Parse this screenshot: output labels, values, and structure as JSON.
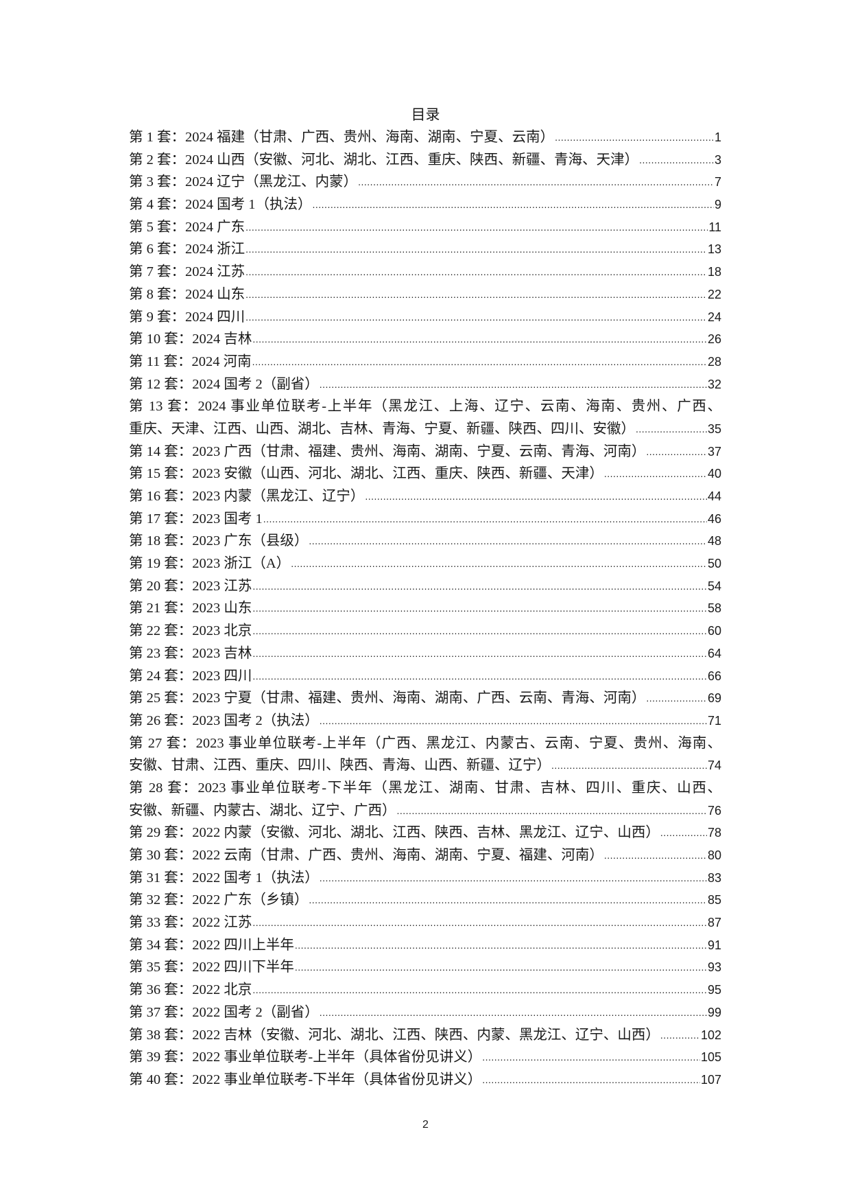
{
  "title": "目录",
  "page_number": "2",
  "entries": [
    {
      "lines": [
        "第 1 套：2024 福建（甘肃、广西、贵州、海南、湖南、宁夏、云南）"
      ],
      "page": "1"
    },
    {
      "lines": [
        "第 2 套：2024 山西（安徽、河北、湖北、江西、重庆、陕西、新疆、青海、天津）"
      ],
      "page": "3"
    },
    {
      "lines": [
        "第 3 套：2024 辽宁（黑龙江、内蒙）"
      ],
      "page": "7"
    },
    {
      "lines": [
        "第 4 套：2024 国考 1（执法）"
      ],
      "page": "9"
    },
    {
      "lines": [
        "第 5 套：2024 广东"
      ],
      "page": "11"
    },
    {
      "lines": [
        "第 6 套：2024 浙江"
      ],
      "page": "13"
    },
    {
      "lines": [
        "第 7 套：2024 江苏"
      ],
      "page": "18"
    },
    {
      "lines": [
        "第 8 套：2024 山东"
      ],
      "page": "22"
    },
    {
      "lines": [
        "第 9 套：2024 四川"
      ],
      "page": "24"
    },
    {
      "lines": [
        "第 10 套：2024 吉林"
      ],
      "page": "26"
    },
    {
      "lines": [
        "第 11 套：2024 河南"
      ],
      "page": "28"
    },
    {
      "lines": [
        "第 12 套：2024 国考 2（副省）"
      ],
      "page": "32"
    },
    {
      "lines": [
        "第 13 套：2024 事业单位联考-上半年（黑龙江、上海、辽宁、云南、海南、贵州、广西、",
        "重庆、天津、江西、山西、湖北、吉林、青海、宁夏、新疆、陕西、四川、安徽）"
      ],
      "page": "35"
    },
    {
      "lines": [
        "第 14 套：2023 广西（甘肃、福建、贵州、海南、湖南、宁夏、云南、青海、河南）"
      ],
      "page": "37"
    },
    {
      "lines": [
        "第 15 套：2023 安徽（山西、河北、湖北、江西、重庆、陕西、新疆、天津）"
      ],
      "page": "40"
    },
    {
      "lines": [
        "第 16 套：2023 内蒙（黑龙江、辽宁）"
      ],
      "page": "44"
    },
    {
      "lines": [
        "第 17 套：2023 国考 1"
      ],
      "page": "46"
    },
    {
      "lines": [
        "第 18 套：2023 广东（县级）"
      ],
      "page": "48"
    },
    {
      "lines": [
        "第 19 套：2023 浙江（A）"
      ],
      "page": "50"
    },
    {
      "lines": [
        "第 20 套：2023 江苏"
      ],
      "page": "54"
    },
    {
      "lines": [
        "第 21 套：2023 山东"
      ],
      "page": "58"
    },
    {
      "lines": [
        "第 22 套：2023 北京"
      ],
      "page": "60"
    },
    {
      "lines": [
        "第 23 套：2023 吉林"
      ],
      "page": "64"
    },
    {
      "lines": [
        "第 24 套：2023 四川"
      ],
      "page": "66"
    },
    {
      "lines": [
        "第 25 套：2023 宁夏（甘肃、福建、贵州、海南、湖南、广西、云南、青海、河南）"
      ],
      "page": "69"
    },
    {
      "lines": [
        "第 26 套：2023 国考 2（执法）"
      ],
      "page": "71"
    },
    {
      "lines": [
        "第 27 套：2023 事业单位联考-上半年（广西、黑龙江、内蒙古、云南、宁夏、贵州、海南、",
        "安徽、甘肃、江西、重庆、四川、陕西、青海、山西、新疆、辽宁）"
      ],
      "page": "74"
    },
    {
      "lines": [
        "第 28 套：2023 事业单位联考-下半年（黑龙江、湖南、甘肃、吉林、四川、重庆、山西、",
        "安徽、新疆、内蒙古、湖北、辽宁、广西）"
      ],
      "page": "76"
    },
    {
      "lines": [
        "第 29 套：2022 内蒙（安徽、河北、湖北、江西、陕西、吉林、黑龙江、辽宁、山西）"
      ],
      "page": "78"
    },
    {
      "lines": [
        "第 30 套：2022 云南（甘肃、广西、贵州、海南、湖南、宁夏、福建、河南）"
      ],
      "page": "80"
    },
    {
      "lines": [
        "第 31 套：2022 国考 1（执法）"
      ],
      "page": "83"
    },
    {
      "lines": [
        "第 32 套：2022 广东（乡镇）"
      ],
      "page": "85"
    },
    {
      "lines": [
        "第 33 套：2022 江苏"
      ],
      "page": "87"
    },
    {
      "lines": [
        "第 34 套：2022 四川上半年"
      ],
      "page": "91"
    },
    {
      "lines": [
        "第 35 套：2022 四川下半年"
      ],
      "page": "93"
    },
    {
      "lines": [
        "第 36 套：2022 北京"
      ],
      "page": "95"
    },
    {
      "lines": [
        "第 37 套：2022 国考 2（副省）"
      ],
      "page": "99"
    },
    {
      "lines": [
        "第 38 套：2022 吉林（安徽、河北、湖北、江西、陕西、内蒙、黑龙江、辽宁、山西）"
      ],
      "page": "102"
    },
    {
      "lines": [
        "第 39 套：2022 事业单位联考-上半年（具体省份见讲义）"
      ],
      "page": "105"
    },
    {
      "lines": [
        "第 40 套：2022 事业单位联考-下半年（具体省份见讲义）"
      ],
      "page": "107"
    }
  ]
}
